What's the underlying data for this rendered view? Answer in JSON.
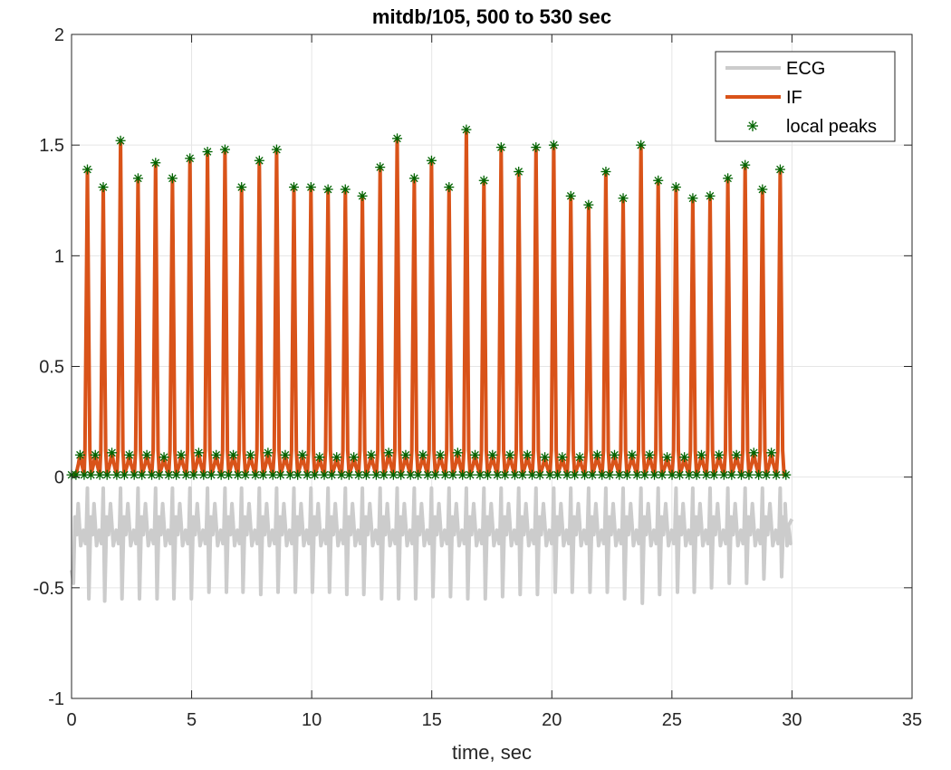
{
  "chart_data": {
    "type": "line",
    "title": "mitdb/105, 500 to 530 sec",
    "xlabel": "time, sec",
    "ylabel": "",
    "xlim": [
      0,
      35
    ],
    "ylim": [
      -1,
      2
    ],
    "xticks": [
      0,
      5,
      10,
      15,
      20,
      25,
      30,
      35
    ],
    "yticks": [
      -1,
      -0.5,
      0,
      0.5,
      1,
      1.5,
      2
    ],
    "xtick_labels": [
      "0",
      "5",
      "10",
      "15",
      "20",
      "25",
      "30",
      "35"
    ],
    "ytick_labels": [
      "-1",
      "-0.5",
      "0",
      "0.5",
      "1",
      "1.5",
      "2"
    ],
    "grid": true,
    "legend_position": "top-right",
    "series": [
      {
        "name": "ECG",
        "color": "#cccccc",
        "style": "line",
        "x_range": [
          0,
          30
        ],
        "baseline": -0.28,
        "beat_times": [
          0.0,
          0.66,
          1.32,
          2.04,
          2.77,
          3.5,
          4.2,
          4.93,
          5.66,
          6.39,
          7.08,
          7.82,
          8.54,
          9.26,
          9.97,
          10.68,
          11.4,
          12.11,
          12.85,
          13.56,
          14.27,
          14.99,
          15.72,
          16.44,
          17.17,
          17.89,
          18.62,
          19.34,
          20.08,
          20.79,
          21.53,
          22.25,
          22.97,
          23.71,
          24.43,
          25.17,
          25.87,
          26.59,
          27.33,
          28.05,
          28.77,
          29.51
        ],
        "troughs": [
          -0.5,
          -0.55,
          -0.56,
          -0.55,
          -0.55,
          -0.55,
          -0.55,
          -0.55,
          -0.52,
          -0.52,
          -0.52,
          -0.53,
          -0.52,
          -0.52,
          -0.52,
          -0.52,
          -0.53,
          -0.53,
          -0.55,
          -0.55,
          -0.55,
          -0.54,
          -0.54,
          -0.55,
          -0.55,
          -0.54,
          -0.53,
          -0.53,
          -0.52,
          -0.52,
          -0.52,
          -0.52,
          -0.55,
          -0.57,
          -0.53,
          -0.52,
          -0.52,
          -0.5,
          -0.48,
          -0.48,
          -0.46,
          -0.45
        ]
      },
      {
        "name": "IF",
        "color": "#d95319",
        "style": "line",
        "x_range": [
          0.05,
          29.75
        ],
        "peak_times": [
          0.66,
          1.32,
          2.04,
          2.77,
          3.5,
          4.2,
          4.93,
          5.66,
          6.39,
          7.08,
          7.82,
          8.54,
          9.26,
          9.97,
          10.68,
          11.4,
          12.11,
          12.85,
          13.56,
          14.27,
          14.99,
          15.72,
          16.44,
          17.17,
          17.89,
          18.62,
          19.34,
          20.08,
          20.79,
          21.53,
          22.25,
          22.97,
          23.71,
          24.43,
          25.17,
          25.87,
          26.59,
          27.33,
          28.05,
          28.77,
          29.51
        ],
        "peak_values": [
          1.39,
          1.31,
          1.52,
          1.35,
          1.42,
          1.35,
          1.44,
          1.47,
          1.48,
          1.31,
          1.43,
          1.48,
          1.31,
          1.31,
          1.3,
          1.3,
          1.27,
          1.4,
          1.53,
          1.35,
          1.43,
          1.31,
          1.57,
          1.34,
          1.49,
          1.38,
          1.49,
          1.5,
          1.27,
          1.23,
          1.38,
          1.26,
          1.5,
          1.34,
          1.31,
          1.26,
          1.27,
          1.35,
          1.41,
          1.3,
          1.39
        ],
        "secondary_peak_values": [
          0.1,
          0.1,
          0.11,
          0.1,
          0.1,
          0.09,
          0.1,
          0.11,
          0.1,
          0.1,
          0.1,
          0.11,
          0.1,
          0.1,
          0.09,
          0.09,
          0.09,
          0.1,
          0.11,
          0.1,
          0.1,
          0.1,
          0.11,
          0.1,
          0.1,
          0.1,
          0.1,
          0.09,
          0.09,
          0.09,
          0.1,
          0.1,
          0.1,
          0.1,
          0.09,
          0.09,
          0.1,
          0.1,
          0.1,
          0.11,
          0.11
        ],
        "trough_value": 0.01
      },
      {
        "name": "local peaks",
        "color": "#006400",
        "style": "marker-star"
      }
    ]
  }
}
